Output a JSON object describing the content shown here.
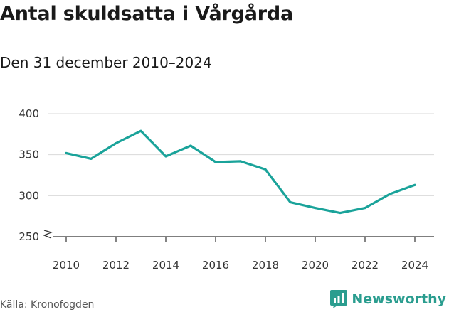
{
  "title": "Antal skuldsatta i Vårgårda",
  "subtitle": "Den 31 december 2010–2024",
  "source": "Källa: Kronofogden",
  "brand": {
    "name": "Newsworthy",
    "color": "#2a9d8f",
    "icon": "bar-chart-icon"
  },
  "colors": {
    "line": "#1aa39a",
    "grid": "#d9d9d9",
    "axis": "#333333"
  },
  "chart_data": {
    "type": "line",
    "title": "Antal skuldsatta i Vårgårda",
    "subtitle": "Den 31 december 2010–2024",
    "xlabel": "",
    "ylabel": "",
    "x": [
      2010,
      2011,
      2012,
      2013,
      2014,
      2015,
      2016,
      2017,
      2018,
      2019,
      2020,
      2021,
      2022,
      2023,
      2024
    ],
    "series": [
      {
        "name": "Antal skuldsatta",
        "values": [
          352,
          345,
          364,
          379,
          348,
          361,
          341,
          342,
          332,
          292,
          285,
          279,
          285,
          302,
          313
        ]
      }
    ],
    "ylim": [
      250,
      400
    ],
    "yticks": [
      250,
      300,
      350,
      400
    ],
    "xticks": [
      2010,
      2012,
      2014,
      2016,
      2018,
      2020,
      2022,
      2024
    ],
    "axis_break": true,
    "grid": true
  }
}
